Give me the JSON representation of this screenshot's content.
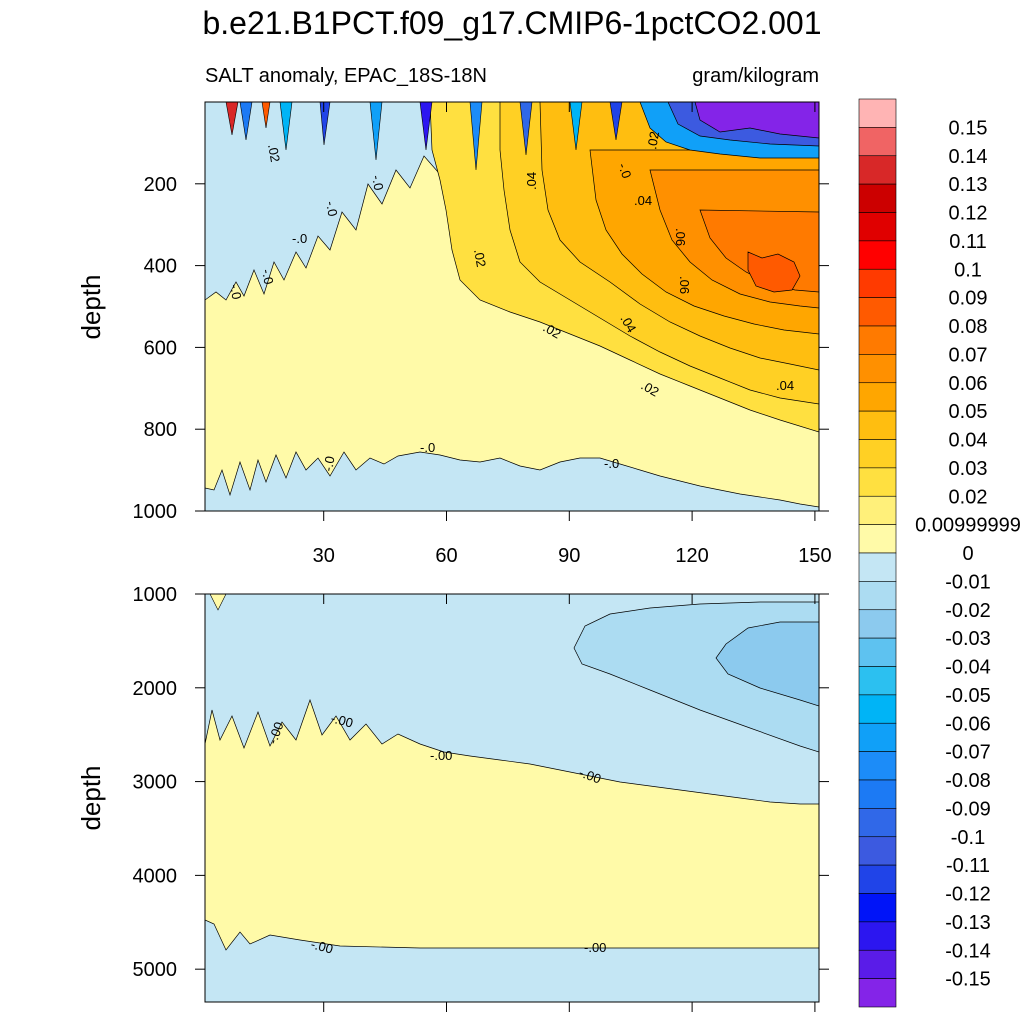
{
  "chart_data": [
    {
      "type": "heatmap",
      "panel": "upper",
      "title": "b.e21.B1PCT.f09_g17.CMIP6-1pctCO2.001",
      "left_subtitle": "SALT anomaly, EPAC_18S-18N",
      "right_subtitle": "gram/kilogram",
      "xlabel": "",
      "ylabel": "depth",
      "xlim": [
        1,
        151
      ],
      "ylim": [
        1000,
        0
      ],
      "x_ticks": [
        "30",
        "60",
        "90",
        "120",
        "150"
      ],
      "x_tick_values": [
        30,
        60,
        90,
        120,
        150
      ],
      "y_ticks": [
        "200",
        "400",
        "600",
        "800",
        "1000"
      ],
      "y_tick_values": [
        200,
        400,
        600,
        800,
        1000
      ],
      "contour_labels": [
        ".02",
        "-.0",
        "-.0",
        "-.0",
        "-.0",
        "-.0",
        ".02",
        ".04",
        "-.0",
        ".02",
        ".04",
        ".06",
        ".06",
        ".04",
        ".02",
        ".02",
        ".04",
        "-.0",
        "-.0",
        "-.0"
      ],
      "regions": [
        {
          "value": -0.005,
          "desc": "upper-left and bottom"
        },
        {
          "value": 0.005,
          "desc": "mid depth"
        },
        {
          "value": 0.03,
          "desc": "east thermocline"
        },
        {
          "value": 0.07,
          "desc": "core near year 140, depth 400"
        },
        {
          "value": -0.15,
          "desc": "surface east"
        }
      ]
    },
    {
      "type": "heatmap",
      "panel": "lower",
      "xlabel": "",
      "ylabel": "depth",
      "xlim": [
        1,
        151
      ],
      "ylim": [
        5350,
        1000
      ],
      "y_ticks": [
        "1000",
        "2000",
        "3000",
        "4000",
        "5000"
      ],
      "y_tick_values": [
        1000,
        2000,
        3000,
        4000,
        5000
      ],
      "contour_labels": [
        "-.00",
        "-.00",
        "-.00",
        "-.00",
        "-.00",
        "-.00"
      ],
      "regions": [
        {
          "value": -0.005,
          "desc": "upper deep layer"
        },
        {
          "value": 0.005,
          "desc": "middle deep layer"
        },
        {
          "value": -0.015,
          "desc": "east 1000-2500"
        },
        {
          "value": -0.025,
          "desc": "east core"
        }
      ]
    }
  ],
  "colorbar": {
    "labels": [
      "0.15",
      "0.14",
      "0.13",
      "0.12",
      "0.11",
      "0.1",
      "0.09",
      "0.08",
      "0.07",
      "0.06",
      "0.05",
      "0.04",
      "0.03",
      "0.02",
      "0.00999999",
      "0",
      "-0.01",
      "-0.02",
      "-0.03",
      "-0.04",
      "-0.05",
      "-0.06",
      "-0.07",
      "-0.08",
      "-0.09",
      "-0.1",
      "-0.11",
      "-0.12",
      "-0.13",
      "-0.14",
      "-0.15"
    ],
    "colors": [
      "#ffb4b4",
      "#f06464",
      "#d82828",
      "#cc0000",
      "#e00000",
      "#ff0000",
      "#ff3a00",
      "#ff5a00",
      "#ff7a00",
      "#ff9000",
      "#ffa600",
      "#ffbe10",
      "#ffd024",
      "#ffe040",
      "#fff07a",
      "#fffaa8",
      "#c4e6f4",
      "#acdcf2",
      "#8ccaee",
      "#5ec2f0",
      "#2cc0f0",
      "#00b4f6",
      "#10a0f8",
      "#1c8cf8",
      "#1c7af4",
      "#3068e8",
      "#3c5ae0",
      "#2044e8",
      "#0014f8",
      "#2c16f0",
      "#5a1ce8",
      "#8424e8"
    ]
  }
}
